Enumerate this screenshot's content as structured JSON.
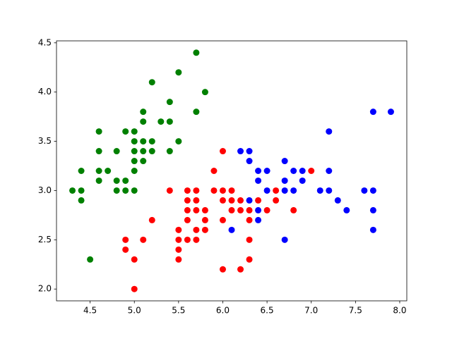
{
  "chart_data": {
    "type": "scatter",
    "xlim": [
      4.12,
      8.08
    ],
    "ylim": [
      1.88,
      4.52
    ],
    "xticks": [
      {
        "value": 4.5,
        "label": "4.5"
      },
      {
        "value": 5.0,
        "label": "5.0"
      },
      {
        "value": 5.5,
        "label": "5.5"
      },
      {
        "value": 6.0,
        "label": "6.0"
      },
      {
        "value": 6.5,
        "label": "6.5"
      },
      {
        "value": 7.0,
        "label": "7.0"
      },
      {
        "value": 7.5,
        "label": "7.5"
      },
      {
        "value": 8.0,
        "label": "8.0"
      }
    ],
    "yticks": [
      {
        "value": 2.0,
        "label": "2.0"
      },
      {
        "value": 2.5,
        "label": "2.5"
      },
      {
        "value": 3.0,
        "label": "3.0"
      },
      {
        "value": 3.5,
        "label": "3.5"
      },
      {
        "value": 4.0,
        "label": "4.0"
      },
      {
        "value": 4.5,
        "label": "4.5"
      }
    ],
    "grid": false,
    "series": [
      {
        "color": "#008000",
        "x": [
          5.1,
          4.9,
          4.7,
          4.6,
          5.0,
          5.4,
          4.6,
          5.0,
          4.4,
          4.9,
          5.4,
          4.8,
          4.8,
          4.3,
          5.8,
          5.7,
          5.7,
          5.1,
          5.4,
          5.1,
          4.6,
          5.1,
          5.0,
          5.2,
          5.2,
          4.8,
          5.2,
          5.5,
          5.0,
          5.5,
          4.4,
          5.1,
          5.0,
          4.5,
          4.4,
          5.3,
          5.0,
          4.9,
          4.6
        ],
        "values": [
          3.5,
          3.0,
          3.2,
          3.1,
          3.6,
          3.9,
          3.4,
          3.4,
          2.9,
          3.1,
          3.7,
          3.4,
          3.0,
          3.0,
          4.0,
          4.4,
          3.8,
          3.8,
          3.4,
          3.7,
          3.6,
          3.3,
          3.0,
          3.5,
          3.4,
          3.1,
          4.1,
          4.2,
          3.2,
          3.5,
          3.0,
          3.4,
          3.5,
          2.3,
          3.2,
          3.7,
          3.3,
          3.6,
          3.2
        ]
      },
      {
        "color": "#ff0000",
        "x": [
          5.5,
          5.7,
          4.9,
          4.9,
          5.2,
          5.0,
          5.9,
          6.0,
          6.1,
          5.6,
          5.6,
          5.8,
          6.2,
          5.6,
          5.9,
          6.1,
          6.3,
          6.4,
          6.6,
          6.8,
          6.0,
          5.7,
          5.5,
          6.0,
          5.4,
          6.0,
          6.3,
          5.5,
          5.5,
          6.1,
          5.8,
          5.0,
          5.6,
          5.7,
          5.7,
          6.2,
          5.1,
          6.5,
          6.6,
          7.0,
          5.8,
          5.7,
          5.6,
          6.3,
          6.2,
          6.3,
          6.0
        ],
        "values": [
          2.3,
          2.8,
          2.4,
          2.5,
          2.7,
          2.0,
          3.0,
          2.2,
          2.9,
          2.9,
          3.0,
          2.7,
          2.2,
          2.5,
          3.2,
          2.8,
          2.5,
          2.9,
          3.0,
          2.8,
          2.9,
          2.6,
          2.4,
          2.7,
          3.0,
          3.4,
          2.3,
          2.5,
          2.6,
          3.0,
          2.6,
          2.3,
          2.7,
          3.0,
          2.9,
          2.9,
          2.5,
          2.8,
          2.9,
          3.2,
          2.8,
          2.5,
          2.8,
          2.7,
          2.8,
          2.8,
          3.0
        ]
      },
      {
        "color": "#0000ff",
        "x": [
          6.3,
          7.1,
          6.3,
          6.5,
          7.6,
          7.3,
          6.7,
          7.2,
          6.5,
          6.4,
          6.8,
          6.4,
          7.7,
          7.7,
          6.9,
          7.7,
          6.7,
          7.2,
          6.1,
          6.4,
          7.2,
          7.4,
          7.9,
          7.7,
          6.3,
          6.4,
          6.9,
          6.7,
          6.8,
          6.7,
          6.2
        ],
        "values": [
          3.3,
          3.0,
          2.9,
          3.0,
          3.0,
          2.9,
          2.5,
          3.6,
          3.2,
          2.7,
          3.0,
          3.2,
          3.8,
          2.6,
          3.2,
          2.8,
          3.3,
          3.2,
          2.6,
          2.8,
          3.0,
          2.8,
          3.8,
          3.0,
          3.4,
          3.1,
          3.1,
          3.1,
          3.2,
          3.0,
          3.4
        ]
      }
    ]
  }
}
